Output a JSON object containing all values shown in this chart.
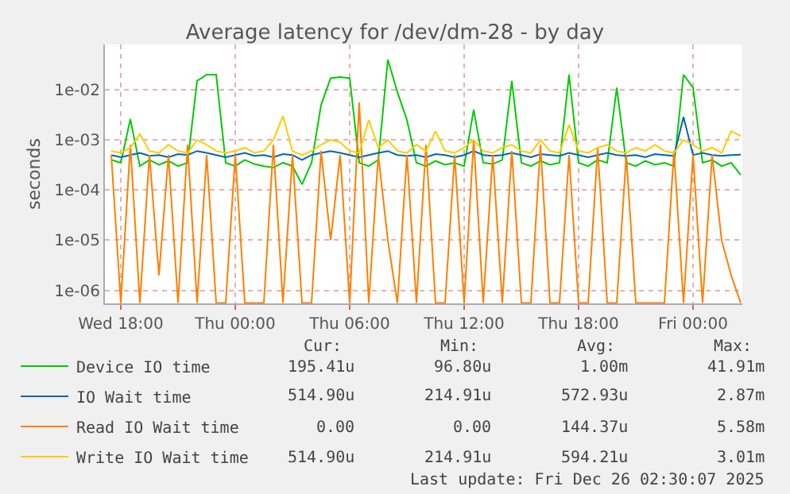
{
  "chart_data": {
    "type": "line",
    "title": "Average latency for /dev/dm-28 - by day",
    "ylabel": "seconds",
    "log": "y",
    "grid": true,
    "legend": "bottom",
    "marker": "none",
    "line_style": "solid",
    "x": [
      "2025-12-24T17:30",
      "2025-12-24T18:00",
      "2025-12-24T18:30",
      "2025-12-24T19:00",
      "2025-12-24T19:30",
      "2025-12-24T20:00",
      "2025-12-24T20:30",
      "2025-12-24T21:00",
      "2025-12-24T21:30",
      "2025-12-24T22:00",
      "2025-12-24T22:30",
      "2025-12-24T23:00",
      "2025-12-24T23:30",
      "2025-12-25T00:00",
      "2025-12-25T00:30",
      "2025-12-25T01:00",
      "2025-12-25T01:30",
      "2025-12-25T02:00",
      "2025-12-25T02:30",
      "2025-12-25T03:00",
      "2025-12-25T03:30",
      "2025-12-25T04:00",
      "2025-12-25T04:30",
      "2025-12-25T05:00",
      "2025-12-25T05:30",
      "2025-12-25T06:00",
      "2025-12-25T06:30",
      "2025-12-25T07:00",
      "2025-12-25T07:30",
      "2025-12-25T08:00",
      "2025-12-25T08:30",
      "2025-12-25T09:00",
      "2025-12-25T09:30",
      "2025-12-25T10:00",
      "2025-12-25T10:30",
      "2025-12-25T11:00",
      "2025-12-25T11:30",
      "2025-12-25T12:00",
      "2025-12-25T12:30",
      "2025-12-25T13:00",
      "2025-12-25T13:30",
      "2025-12-25T14:00",
      "2025-12-25T14:30",
      "2025-12-25T15:00",
      "2025-12-25T15:30",
      "2025-12-25T16:00",
      "2025-12-25T16:30",
      "2025-12-25T17:00",
      "2025-12-25T17:30",
      "2025-12-25T18:00",
      "2025-12-25T18:30",
      "2025-12-25T19:00",
      "2025-12-25T19:30",
      "2025-12-25T20:00",
      "2025-12-25T20:30",
      "2025-12-25T21:00",
      "2025-12-25T21:30",
      "2025-12-25T22:00",
      "2025-12-25T22:30",
      "2025-12-25T23:00",
      "2025-12-25T23:30",
      "2025-12-26T00:00",
      "2025-12-26T00:30",
      "2025-12-26T01:00",
      "2025-12-26T01:30",
      "2025-12-26T02:00",
      "2025-12-26T02:30"
    ],
    "xlim": [
      "2025-12-24T17:10",
      "2025-12-26T02:35"
    ],
    "xticks": [
      {
        "value": "2025-12-24T18:00",
        "label": "Wed 18:00"
      },
      {
        "value": "2025-12-25T00:00",
        "label": "Thu 00:00"
      },
      {
        "value": "2025-12-25T06:00",
        "label": "Thu 06:00"
      },
      {
        "value": "2025-12-25T12:00",
        "label": "Thu 12:00"
      },
      {
        "value": "2025-12-25T18:00",
        "label": "Thu 18:00"
      },
      {
        "value": "2025-12-26T00:00",
        "label": "Fri 00:00"
      }
    ],
    "ylim": [
      5.5e-07,
      0.08
    ],
    "yticks": [
      {
        "value": 1e-06,
        "label": "1e-06"
      },
      {
        "value": 1e-05,
        "label": "1e-05"
      },
      {
        "value": 0.0001,
        "label": "1e-04"
      },
      {
        "value": 0.001,
        "label": "1e-03"
      },
      {
        "value": 0.01,
        "label": "1e-02"
      }
    ],
    "series": [
      {
        "name": "Device IO time",
        "color": "#00cc00",
        "values": [
          0.0004,
          0.00035,
          0.0026,
          0.0003,
          0.0004,
          0.00032,
          0.00038,
          0.0003,
          0.00035,
          0.015,
          0.02,
          0.02,
          0.00035,
          0.0003,
          0.0004,
          0.00033,
          0.0003,
          0.00028,
          0.00035,
          0.0003,
          0.00013,
          0.00035,
          0.005,
          0.017,
          0.018,
          0.017,
          0.00035,
          0.0003,
          0.0004,
          0.04,
          0.009,
          0.0025,
          0.00035,
          0.0003,
          0.00038,
          0.00032,
          0.00035,
          0.0003,
          0.004,
          0.00035,
          0.00033,
          0.0004,
          0.015,
          0.00035,
          0.0003,
          0.00038,
          0.00032,
          0.00035,
          0.02,
          0.00035,
          0.0003,
          0.0004,
          0.00035,
          0.011,
          0.00035,
          0.0003,
          0.00038,
          0.00032,
          0.00035,
          0.0003,
          0.02,
          0.011,
          0.00035,
          0.0004,
          0.0003,
          0.00035,
          0.0002
        ]
      },
      {
        "name": "IO Wait time",
        "color": "#0066b3",
        "values": [
          0.0005,
          0.00045,
          0.0005,
          0.00055,
          0.00048,
          0.0005,
          0.00045,
          0.00052,
          0.0005,
          0.0006,
          0.00055,
          0.0005,
          0.00045,
          0.0005,
          0.00055,
          0.00048,
          0.0005,
          0.00045,
          0.00052,
          0.0005,
          0.0004,
          0.0005,
          0.00055,
          0.0006,
          0.00055,
          0.0005,
          0.00045,
          0.0005,
          0.00055,
          0.0006,
          0.0005,
          0.00048,
          0.0005,
          0.00045,
          0.00052,
          0.0005,
          0.00045,
          0.0005,
          0.0006,
          0.0005,
          0.00048,
          0.0005,
          0.00055,
          0.0005,
          0.00045,
          0.00052,
          0.0005,
          0.00048,
          0.00055,
          0.0005,
          0.00045,
          0.0005,
          0.00055,
          0.0005,
          0.00048,
          0.0005,
          0.00045,
          0.00052,
          0.0005,
          0.00048,
          0.00287,
          0.0005,
          0.00055,
          0.0005,
          0.00048,
          0.0005,
          0.00051
        ]
      },
      {
        "name": "Read IO Wait time",
        "color": "#ff8000",
        "values": [
          0.0005,
          5.6e-07,
          0.0008,
          5.6e-07,
          0.0005,
          2e-06,
          0.0005,
          5.6e-07,
          0.0008,
          5.6e-07,
          0.0005,
          5.6e-07,
          5.6e-07,
          0.0005,
          5.6e-07,
          5.6e-07,
          5.6e-07,
          0.0008,
          5.6e-07,
          0.0005,
          5.6e-07,
          5.6e-07,
          0.0006,
          1e-05,
          0.0005,
          5.6e-07,
          0.00558,
          5.6e-07,
          0.0005,
          1e-05,
          5.6e-07,
          0.0005,
          5.6e-07,
          0.0008,
          5.6e-07,
          5.6e-07,
          0.0005,
          5.6e-07,
          0.001,
          5.6e-07,
          0.0005,
          5.6e-07,
          0.0006,
          5.6e-07,
          5.6e-07,
          0.0008,
          5.6e-07,
          5.6e-07,
          0.0005,
          5.6e-07,
          5.6e-07,
          0.0007,
          5.6e-07,
          5.6e-07,
          0.0005,
          5.6e-07,
          5.6e-07,
          5.6e-07,
          5.6e-07,
          0.0006,
          5.6e-07,
          0.0005,
          5.6e-07,
          0.0005,
          1e-05,
          2e-06,
          5.6e-07
        ]
      },
      {
        "name": "Write IO Wait time",
        "color": "#ffcc00",
        "values": [
          0.0006,
          0.00055,
          0.0007,
          0.0013,
          0.0006,
          0.00055,
          0.0008,
          0.0006,
          0.00055,
          0.001,
          0.0008,
          0.0006,
          0.00055,
          0.0006,
          0.0007,
          0.00055,
          0.0006,
          0.001,
          0.003,
          0.0006,
          0.0005,
          0.0006,
          0.0008,
          0.001,
          0.0009,
          0.0006,
          0.00055,
          0.0025,
          0.0007,
          0.001,
          0.0006,
          0.00055,
          0.0008,
          0.0006,
          0.0015,
          0.0006,
          0.00055,
          0.0007,
          0.001,
          0.0006,
          0.00055,
          0.0007,
          0.0008,
          0.0006,
          0.00055,
          0.001,
          0.0006,
          0.00055,
          0.002,
          0.0006,
          0.00055,
          0.0007,
          0.0008,
          0.0006,
          0.00055,
          0.0007,
          0.0006,
          0.0008,
          0.0006,
          0.00055,
          0.001,
          0.0008,
          0.0006,
          0.0007,
          0.00055,
          0.0015,
          0.0012
        ]
      }
    ],
    "annotations": [
      "Cur:",
      "Min:",
      "Avg:",
      "Max:",
      "195.41u",
      "96.80u",
      "1.00m",
      "41.91m",
      "514.90u",
      "214.91u",
      "572.93u",
      "2.87m",
      "0.00",
      "0.00",
      "144.37u",
      "5.58m",
      "514.90u",
      "214.91u",
      "594.21u",
      "3.01m",
      "Last update: Fri Dec 26 02:30:07 2025"
    ]
  }
}
